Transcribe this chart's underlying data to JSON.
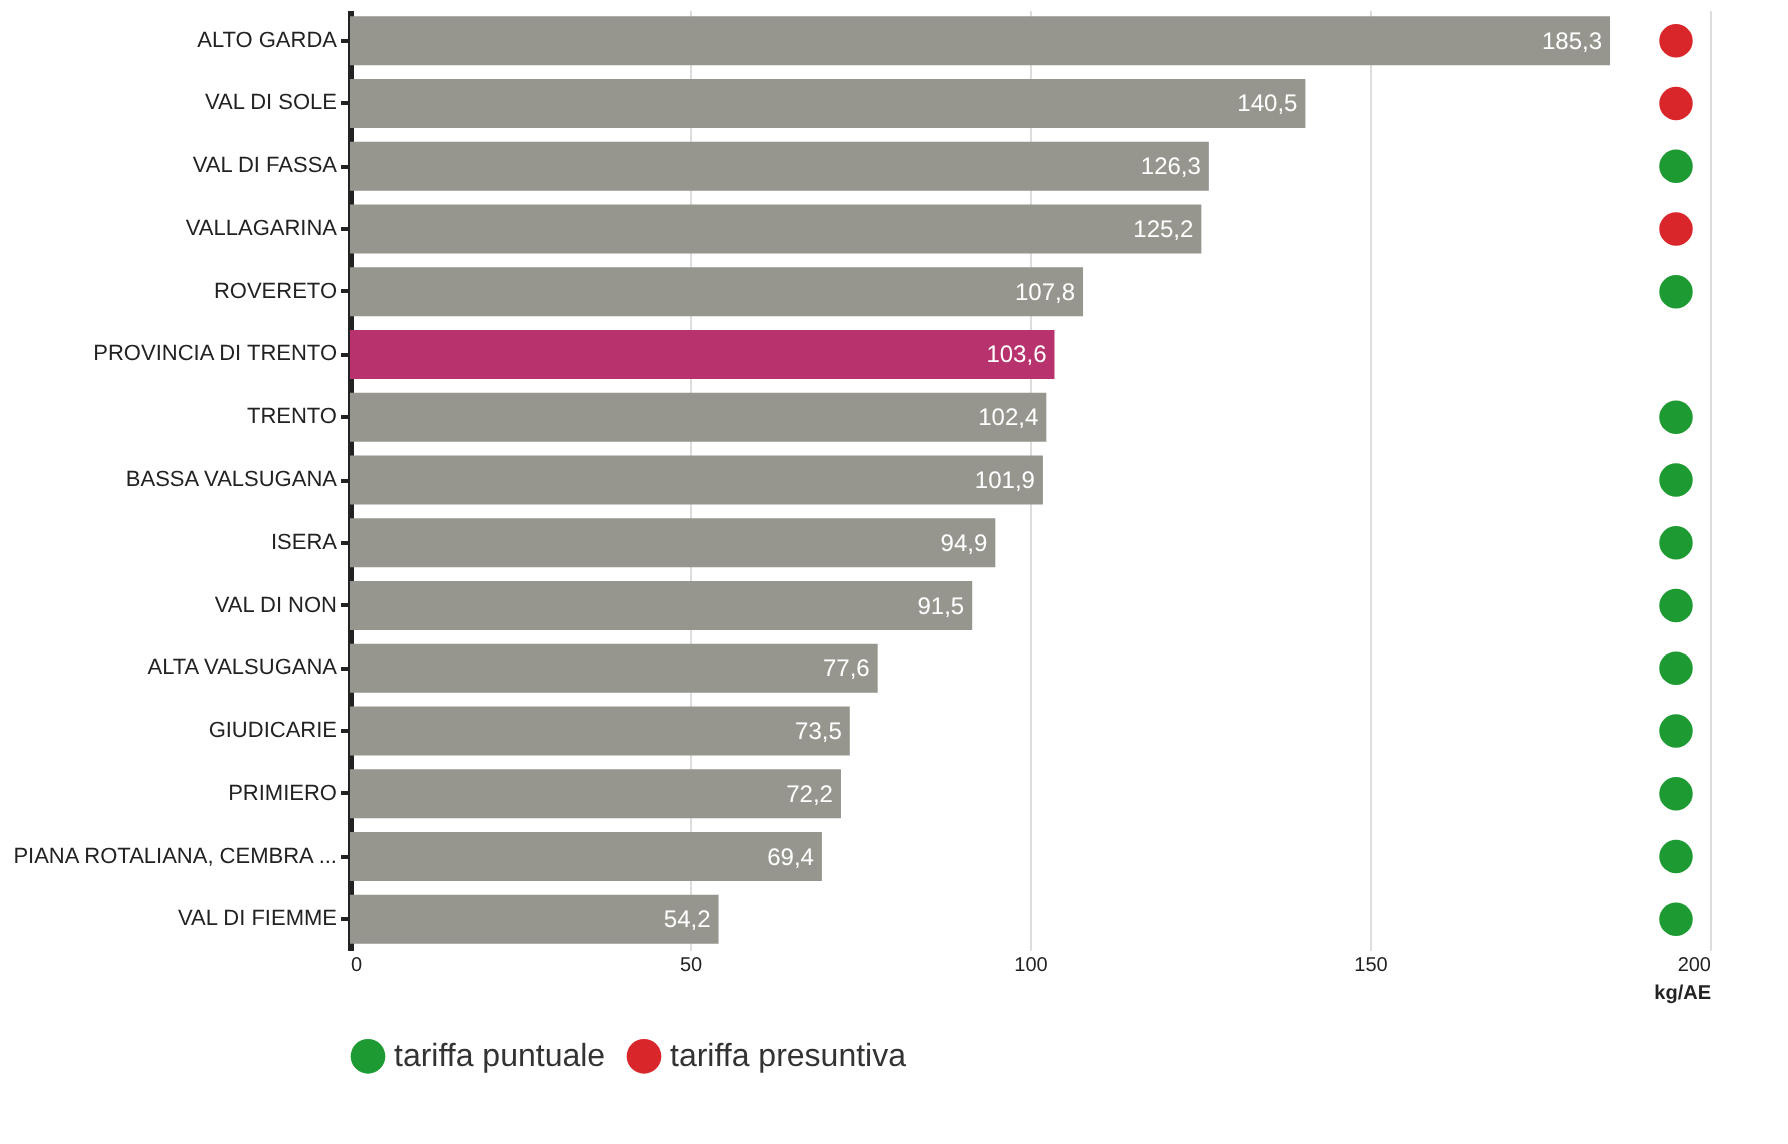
{
  "chart_data": {
    "type": "bar",
    "orientation": "horizontal",
    "xlabel": "kg/AE",
    "categories": [
      "ALTO GARDA",
      "VAL DI SOLE",
      "VAL DI FASSA",
      "VALLAGARINA",
      "ROVERETO",
      "PROVINCIA DI TRENTO",
      "TRENTO",
      "BASSA VALSUGANA",
      "ISERA",
      "VAL DI NON",
      "ALTA VALSUGANA",
      "GIUDICARIE",
      "PRIMIERO",
      "PIANA ROTALIANA, CEMBRA ...",
      "VAL DI FIEMME"
    ],
    "series": [
      {
        "values": [
          185.3,
          140.5,
          126.3,
          125.2,
          107.8,
          103.6,
          102.4,
          101.9,
          94.9,
          91.5,
          77.6,
          73.5,
          72.2,
          69.4,
          54.2
        ],
        "colors": [
          "#96968e",
          "#96968e",
          "#96968e",
          "#96968e",
          "#96968e",
          "#b8326e",
          "#96968e",
          "#96968e",
          "#96968e",
          "#96968e",
          "#96968e",
          "#96968e",
          "#96968e",
          "#96968e",
          "#96968e"
        ],
        "value_labels": [
          "185,3",
          "140,5",
          "126,3",
          "125,2",
          "107,8",
          "103,6",
          "102,4",
          "101,9",
          "94,9",
          "91,5",
          "77,6",
          "73,5",
          "72,2",
          "69,4",
          "54,2"
        ]
      },
      {
        "type": "scatter",
        "name": "tariffa puntuale",
        "color": "#1e9a32",
        "values": [
          null,
          null,
          195,
          null,
          195,
          null,
          195,
          195,
          195,
          195,
          195,
          195,
          195,
          195,
          195
        ]
      },
      {
        "type": "scatter",
        "name": "tariffa presuntiva",
        "color": "#d9262a",
        "values": [
          195,
          195,
          null,
          195,
          null,
          null,
          null,
          null,
          null,
          null,
          null,
          null,
          null,
          null,
          null
        ]
      }
    ],
    "xlim": [
      0,
      200
    ],
    "xticks": [
      0,
      50,
      100,
      150,
      200
    ],
    "grid": "x",
    "legend": "bottom",
    "marker": "circle"
  }
}
